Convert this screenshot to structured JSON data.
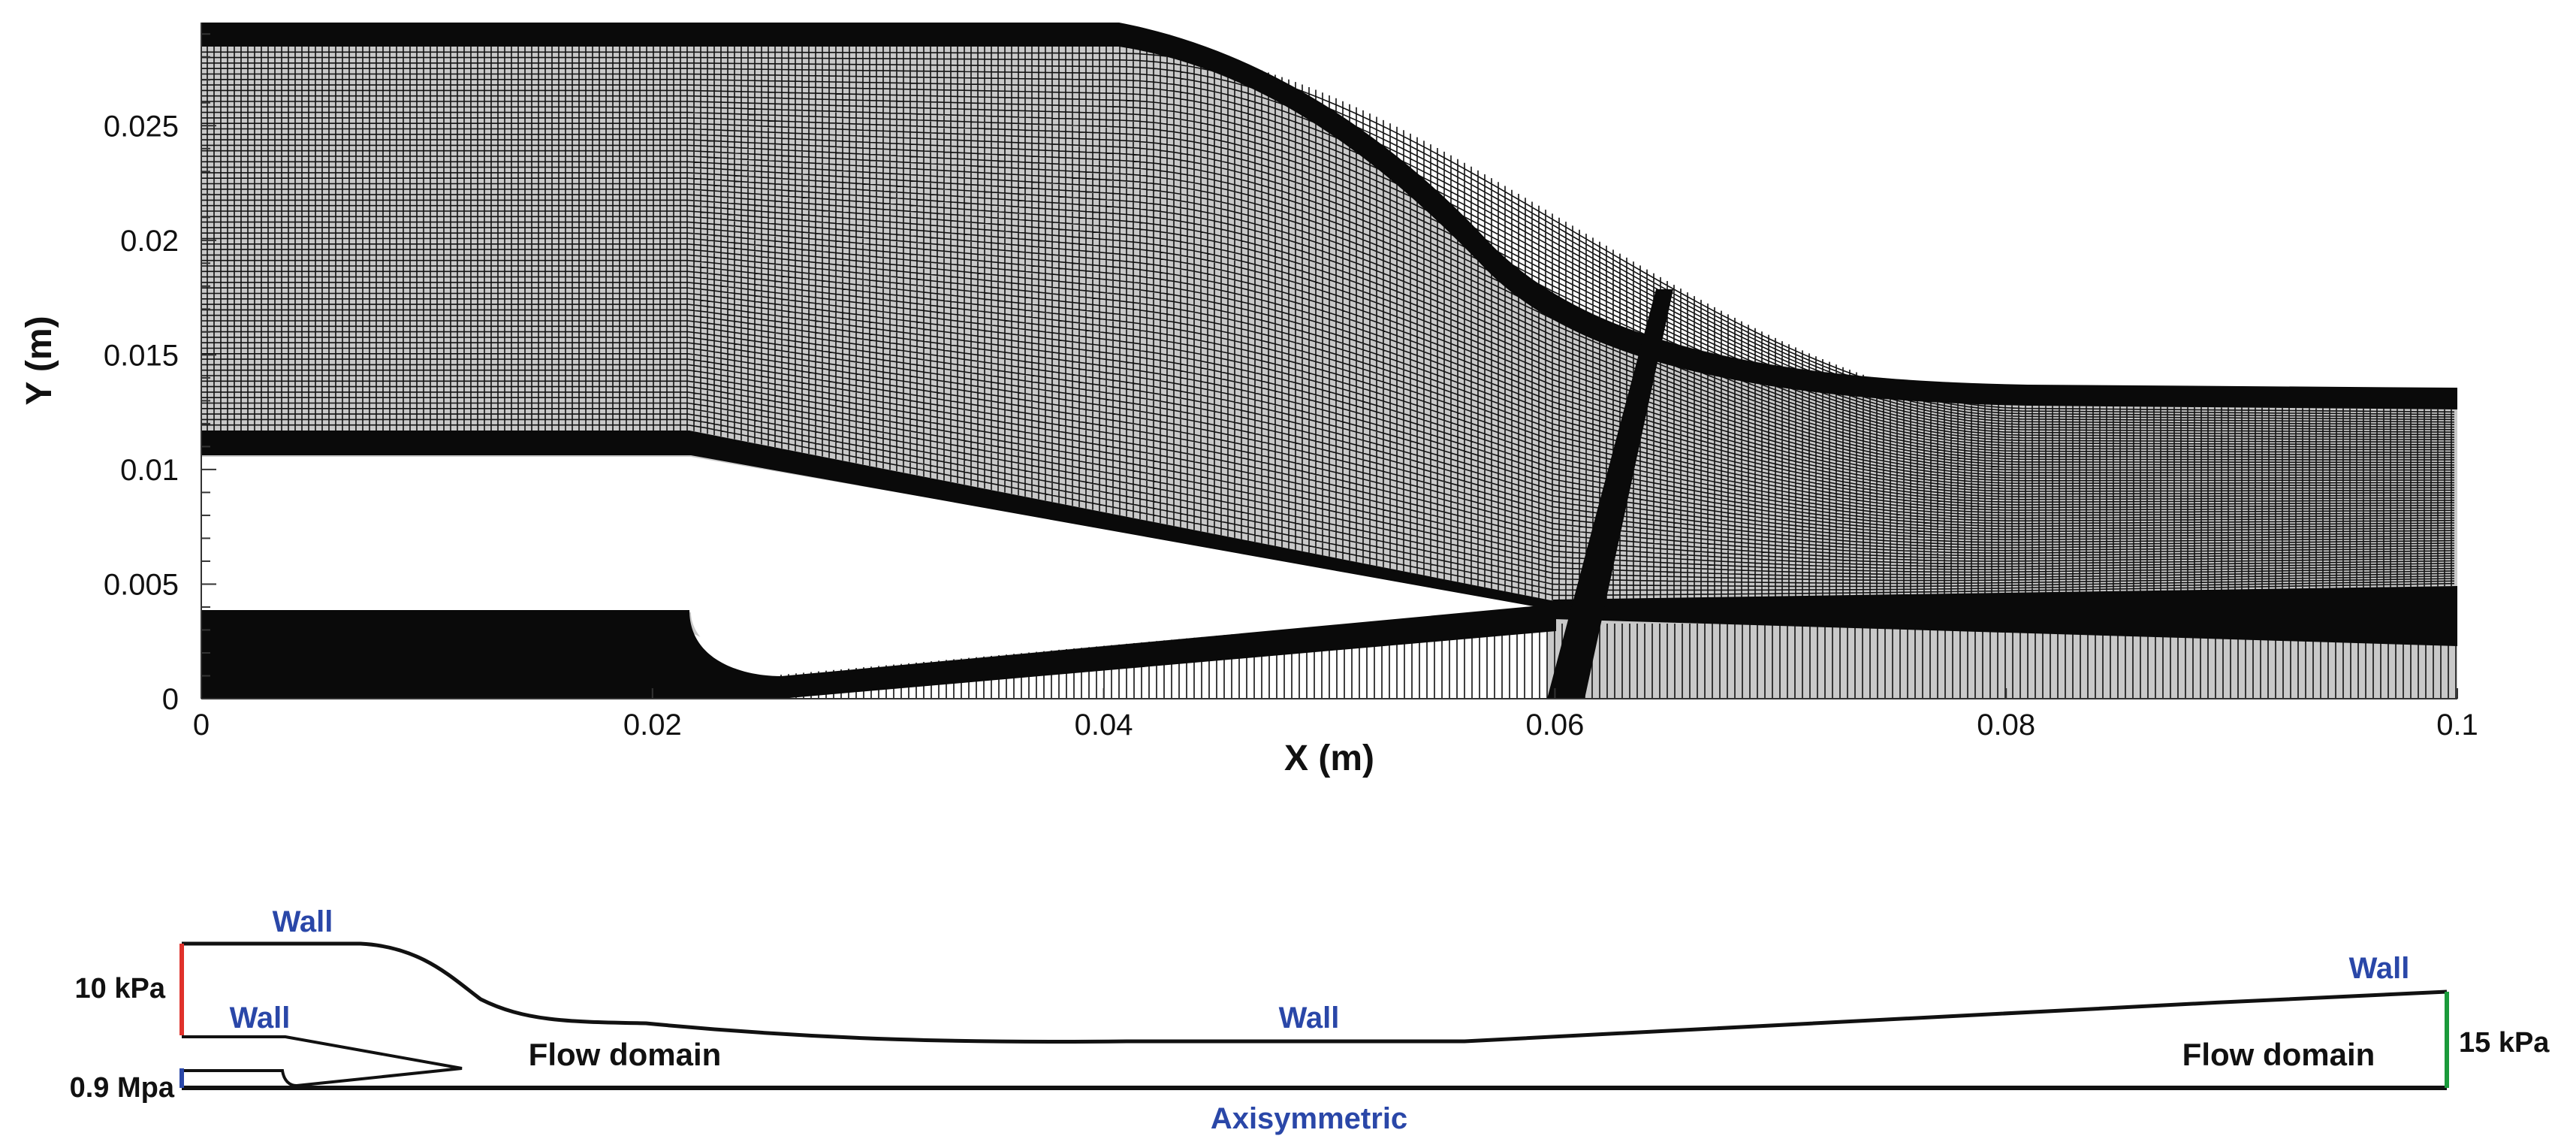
{
  "mesh_plot": {
    "x_axis_label": "X (m)",
    "y_axis_label": "Y (m)",
    "x_ticks": [
      "0",
      "0.02",
      "0.04",
      "0.06",
      "0.08",
      "0.1"
    ],
    "y_ticks": [
      "0",
      "0.005",
      "0.01",
      "0.015",
      "0.02",
      "0.025"
    ],
    "x_range": [
      0,
      0.1
    ],
    "y_range": [
      0,
      0.0295
    ],
    "mesh_color": "#111111"
  },
  "schematic": {
    "top_wall_label": "Wall",
    "inner_wall_label": "Wall",
    "middle_wall_label": "Wall",
    "right_wall_label": "Wall",
    "inlet_outer_pressure": "10 kPa",
    "inlet_inner_pressure": "0.9 Mpa",
    "outlet_pressure": "15 kPa",
    "flow_domain_left": "Flow domain",
    "flow_domain_right": "Flow domain",
    "axis_label": "Axisymmetric",
    "wall_label_color": "#2a47a8",
    "inlet_outer_color": "#e0312b",
    "inlet_inner_color": "#2a47a8",
    "outlet_color": "#1a9a3a",
    "axis_color": "#2a47a8"
  }
}
